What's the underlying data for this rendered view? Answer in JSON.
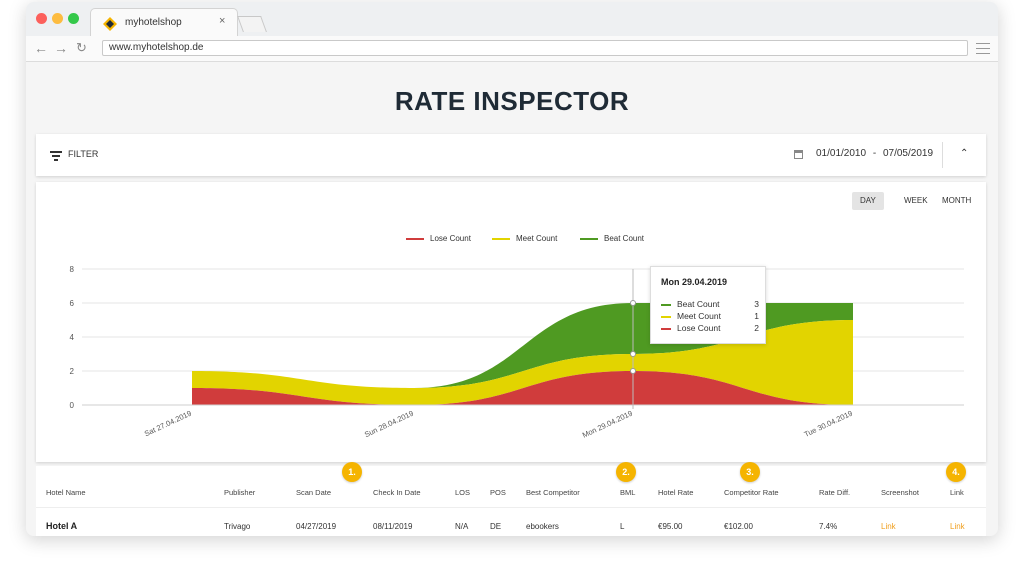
{
  "browser": {
    "tab_title": "myhotelshop",
    "tab_close": "×",
    "url": "www.myhotelshop.de"
  },
  "page": {
    "title": "RATE INSPECTOR"
  },
  "filter": {
    "label": "FILTER",
    "date_from": "01/01/2010",
    "date_to": "07/05/2019",
    "date_separator": "-"
  },
  "period_buttons": {
    "day": "DAY",
    "week": "WEEK",
    "month": "MONTH",
    "active": "DAY"
  },
  "chart_data": {
    "type": "area",
    "stacked": true,
    "categories": [
      "Sat 27.04.2019",
      "Sun 28.04.2019",
      "Mon 29.04.2019",
      "Tue 30.04.2019"
    ],
    "series": [
      {
        "name": "Lose Count",
        "color": "#d03c3c",
        "values": [
          1,
          0,
          2,
          0
        ]
      },
      {
        "name": "Meet Count",
        "color": "#e2d400",
        "values": [
          1,
          1,
          1,
          5
        ]
      },
      {
        "name": "Beat Count",
        "color": "#4f9a22",
        "values": [
          0,
          0,
          3,
          1
        ]
      }
    ],
    "y_ticks": [
      0,
      2,
      4,
      6,
      8
    ],
    "ylim": [
      0,
      8
    ],
    "grid": true,
    "legend_position": "top-center"
  },
  "tooltip": {
    "title": "Mon 29.04.2019",
    "rows": [
      {
        "label": "Beat Count",
        "value": "3",
        "color": "#4f9a22"
      },
      {
        "label": "Meet Count",
        "value": "1",
        "color": "#e2d400"
      },
      {
        "label": "Lose Count",
        "value": "2",
        "color": "#d03c3c"
      }
    ]
  },
  "table": {
    "headers": {
      "hotel_name": "Hotel Name",
      "publisher": "Publisher",
      "scan_date": "Scan Date",
      "check_in": "Check In Date",
      "los": "LOS",
      "pos": "POS",
      "best_competitor": "Best Competitor",
      "bml": "BML",
      "hotel_rate": "Hotel Rate",
      "competitor_rate": "Competitor Rate",
      "rate_diff": "Rate Diff.",
      "screenshot": "Screenshot",
      "link": "Link"
    },
    "badges": [
      "1.",
      "2.",
      "3.",
      "4."
    ],
    "rows": [
      {
        "hotel_name": "Hotel A",
        "publisher": "Trivago",
        "scan_date": "04/27/2019",
        "check_in": "08/11/2019",
        "los": "N/A",
        "pos": "DE",
        "best_competitor": "ebookers",
        "bml": "L",
        "hotel_rate": "€95.00",
        "competitor_rate": "€102.00",
        "rate_diff": "7.4%",
        "screenshot": "Link",
        "link": "Link"
      }
    ]
  },
  "colors": {
    "title": "#1f2b36",
    "link": "#f0a020",
    "badge": "#f5b400"
  }
}
